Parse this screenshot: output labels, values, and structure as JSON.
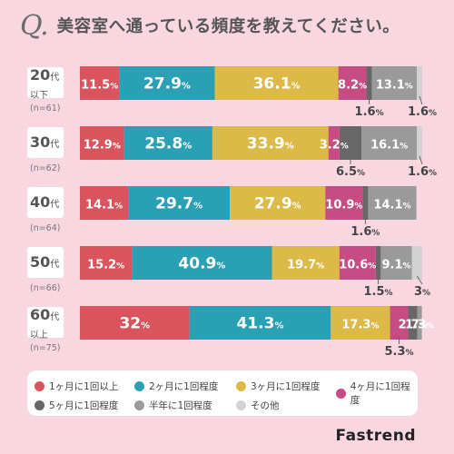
{
  "header": {
    "q": "Q.",
    "title": "美容室へ通っている頻度を教えてください。"
  },
  "brand": "Fastrend",
  "chart_data": {
    "type": "bar",
    "orientation": "horizontal",
    "stacked": true,
    "xlim": [
      0,
      100
    ],
    "categories": [
      {
        "main": "20代",
        "sub": "以下",
        "n": "(n=61)"
      },
      {
        "main": "30代",
        "sub": "",
        "n": "(n=62)"
      },
      {
        "main": "40代",
        "sub": "",
        "n": "(n=64)"
      },
      {
        "main": "50代",
        "sub": "",
        "n": "(n=66)"
      },
      {
        "main": "60代",
        "sub": "以上",
        "n": "(n=75)"
      }
    ],
    "series": [
      {
        "name": "1ヶ月に1回以上",
        "color": "#d9545c",
        "values": [
          11.5,
          12.9,
          14.1,
          15.2,
          32
        ],
        "labels": [
          "11.5%",
          "12.9%",
          "14.1%",
          "15.2%",
          "32%"
        ]
      },
      {
        "name": "2ヶ月に1回程度",
        "color": "#2aa0b5",
        "values": [
          27.9,
          25.8,
          29.7,
          40.9,
          41.3
        ],
        "labels": [
          "27.9%",
          "25.8%",
          "29.7%",
          "40.9%",
          "41.3%"
        ]
      },
      {
        "name": "3ヶ月に1回程度",
        "color": "#ddb948",
        "values": [
          36.1,
          33.9,
          27.9,
          19.7,
          17.3
        ],
        "labels": [
          "36.1%",
          "33.9%",
          "27.9%",
          "19.7%",
          "17.3%"
        ]
      },
      {
        "name": "4ヶ月に1回程度",
        "color": "#c84c84",
        "values": [
          8.2,
          3.2,
          10.9,
          10.6,
          5.3
        ],
        "labels": [
          "8.2%",
          "3.2%",
          "10.9%",
          "10.6%",
          "5.3%"
        ]
      },
      {
        "name": "5ヶ月に1回程度",
        "color": "#676767",
        "values": [
          1.6,
          6.5,
          1.6,
          1.5,
          2.7
        ],
        "labels": [
          "1.6%",
          "6.5%",
          "1.6%",
          "1.5%",
          "2.7%"
        ]
      },
      {
        "name": "半年に1回程度",
        "color": "#9a9a9a",
        "values": [
          13.1,
          16.1,
          14.1,
          9.1,
          1.3
        ],
        "labels": [
          "13.1%",
          "16.1%",
          "14.1%",
          "9.1%",
          "1.3%"
        ]
      },
      {
        "name": "その他",
        "color": "#d2d2d2",
        "values": [
          1.6,
          1.6,
          0,
          3,
          0
        ],
        "labels": [
          "1.6%",
          "1.6%",
          "",
          "3%",
          ""
        ]
      }
    ]
  }
}
